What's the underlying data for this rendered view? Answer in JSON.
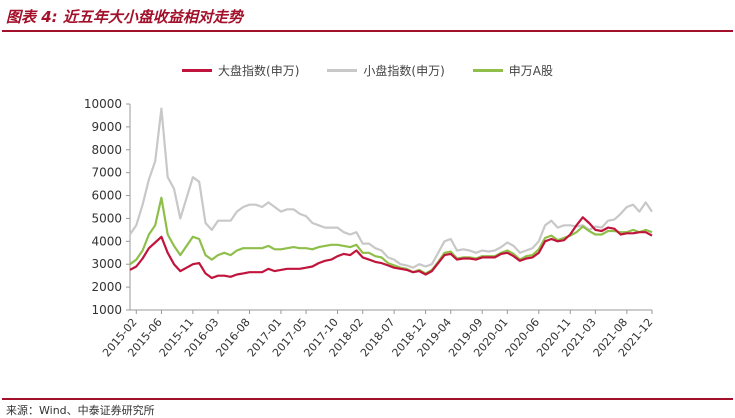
{
  "figure_title": "图表 4: 近五年大小盘收益相对走势",
  "source": "来源：Wind、中泰证券研究所",
  "colors": {
    "accent": "#a3102a",
    "large_cap": "#c0143c",
    "small_cap": "#c8c8c8",
    "a_share": "#8fbf4a"
  },
  "chart_data": {
    "type": "line",
    "title": "",
    "xlabel": "",
    "ylabel": "",
    "ylim": [
      1000,
      10000
    ],
    "yticks": [
      1000,
      2000,
      3000,
      4000,
      5000,
      6000,
      7000,
      8000,
      9000,
      10000
    ],
    "xticks": [
      "2015-02",
      "2015-06",
      "2015-11",
      "2016-03",
      "2016-08",
      "2017-01",
      "2017-05",
      "2017-10",
      "2018-02",
      "2018-07",
      "2018-12",
      "2019-04",
      "2019-09",
      "2020-01",
      "2020-06",
      "2020-11",
      "2021-03",
      "2021-08",
      "2021-12"
    ],
    "x": [
      "2015-01",
      "2015-02",
      "2015-03",
      "2015-04",
      "2015-05",
      "2015-06",
      "2015-07",
      "2015-08",
      "2015-09",
      "2015-10",
      "2015-11",
      "2015-12",
      "2016-01",
      "2016-02",
      "2016-03",
      "2016-04",
      "2016-05",
      "2016-06",
      "2016-07",
      "2016-08",
      "2016-09",
      "2016-10",
      "2016-11",
      "2016-12",
      "2017-01",
      "2017-02",
      "2017-03",
      "2017-04",
      "2017-05",
      "2017-06",
      "2017-07",
      "2017-08",
      "2017-09",
      "2017-10",
      "2017-11",
      "2017-12",
      "2018-01",
      "2018-02",
      "2018-03",
      "2018-04",
      "2018-05",
      "2018-06",
      "2018-07",
      "2018-08",
      "2018-09",
      "2018-10",
      "2018-11",
      "2018-12",
      "2019-01",
      "2019-02",
      "2019-03",
      "2019-04",
      "2019-05",
      "2019-06",
      "2019-07",
      "2019-08",
      "2019-09",
      "2019-10",
      "2019-11",
      "2019-12",
      "2020-01",
      "2020-02",
      "2020-03",
      "2020-04",
      "2020-05",
      "2020-06",
      "2020-07",
      "2020-08",
      "2020-09",
      "2020-10",
      "2020-11",
      "2020-12",
      "2021-01",
      "2021-02",
      "2021-03",
      "2021-04",
      "2021-05",
      "2021-06",
      "2021-07",
      "2021-08",
      "2021-09",
      "2021-10",
      "2021-11",
      "2021-12"
    ],
    "series": [
      {
        "name": "大盘指数(申万)",
        "color": "#c0143c",
        "values": [
          2750,
          2900,
          3250,
          3700,
          3950,
          4200,
          3500,
          3000,
          2700,
          2850,
          3000,
          3050,
          2600,
          2400,
          2500,
          2500,
          2450,
          2550,
          2600,
          2650,
          2650,
          2650,
          2800,
          2700,
          2750,
          2800,
          2800,
          2800,
          2850,
          2900,
          3050,
          3150,
          3200,
          3350,
          3450,
          3400,
          3600,
          3300,
          3200,
          3100,
          3050,
          2950,
          2850,
          2800,
          2750,
          2650,
          2700,
          2550,
          2700,
          3050,
          3400,
          3450,
          3200,
          3250,
          3250,
          3200,
          3300,
          3300,
          3300,
          3450,
          3500,
          3350,
          3150,
          3250,
          3300,
          3500,
          4000,
          4100,
          4000,
          4050,
          4300,
          4700,
          5050,
          4800,
          4500,
          4450,
          4600,
          4550,
          4300,
          4350,
          4350,
          4400,
          4400,
          4250
        ]
      },
      {
        "name": "小盘指数(申万)",
        "color": "#c8c8c8",
        "values": [
          4300,
          4700,
          5600,
          6700,
          7500,
          9800,
          6800,
          6300,
          5000,
          5900,
          6800,
          6600,
          4800,
          4500,
          4900,
          4900,
          4900,
          5300,
          5500,
          5600,
          5600,
          5500,
          5700,
          5500,
          5300,
          5400,
          5400,
          5200,
          5100,
          4800,
          4700,
          4600,
          4600,
          4600,
          4400,
          4300,
          4400,
          3900,
          3900,
          3700,
          3600,
          3300,
          3200,
          3000,
          2950,
          2850,
          3000,
          2900,
          3000,
          3500,
          4000,
          4100,
          3600,
          3650,
          3600,
          3500,
          3600,
          3550,
          3600,
          3750,
          3950,
          3800,
          3500,
          3600,
          3700,
          4000,
          4700,
          4900,
          4600,
          4700,
          4700,
          4650,
          4700,
          4500,
          4650,
          4600,
          4900,
          4950,
          5200,
          5500,
          5600,
          5300,
          5700,
          5300
        ]
      },
      {
        "name": "申万A股",
        "color": "#8fbf4a",
        "values": [
          3000,
          3200,
          3600,
          4300,
          4700,
          5900,
          4300,
          3800,
          3400,
          3800,
          4200,
          4100,
          3400,
          3200,
          3400,
          3500,
          3400,
          3600,
          3700,
          3700,
          3700,
          3700,
          3800,
          3650,
          3650,
          3700,
          3750,
          3700,
          3700,
          3650,
          3750,
          3800,
          3850,
          3850,
          3800,
          3750,
          3850,
          3500,
          3500,
          3350,
          3300,
          3050,
          2950,
          2850,
          2800,
          2650,
          2750,
          2600,
          2750,
          3100,
          3500,
          3550,
          3250,
          3300,
          3300,
          3250,
          3350,
          3350,
          3350,
          3500,
          3600,
          3450,
          3200,
          3350,
          3400,
          3650,
          4150,
          4250,
          4050,
          4150,
          4250,
          4400,
          4650,
          4450,
          4300,
          4300,
          4450,
          4450,
          4400,
          4400,
          4500,
          4400,
          4500,
          4400
        ]
      }
    ],
    "grid": false,
    "legend_position": "top-center"
  }
}
